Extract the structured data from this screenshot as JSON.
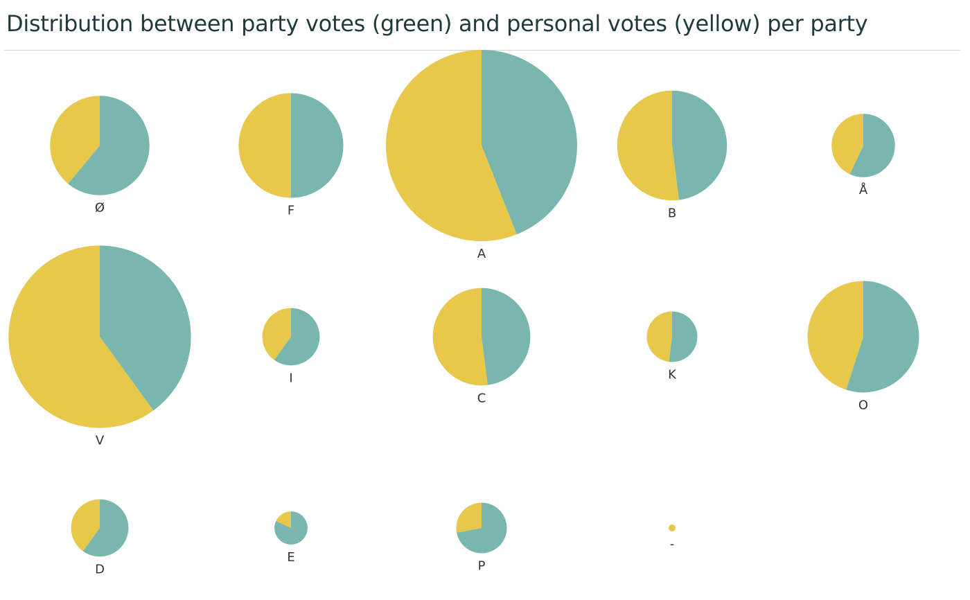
{
  "chart_data": {
    "type": "pie",
    "title": "Distribution between party votes (green) and personal votes (yellow) per party",
    "colors": {
      "party_votes": "#79b7ae",
      "personal_votes": "#e8c84a"
    },
    "series": [
      {
        "name": "party votes (green)",
        "color": "#79b7ae"
      },
      {
        "name": "personal votes (yellow)",
        "color": "#e8c84a"
      }
    ],
    "pies": [
      {
        "label": "Ø",
        "party_share": 0.61,
        "personal_share": 0.39,
        "relative_total": 0.27
      },
      {
        "label": "F",
        "party_share": 0.5,
        "personal_share": 0.5,
        "relative_total": 0.3
      },
      {
        "label": "A",
        "party_share": 0.44,
        "personal_share": 0.56,
        "relative_total": 1.0
      },
      {
        "label": "B",
        "party_share": 0.48,
        "personal_share": 0.52,
        "relative_total": 0.33
      },
      {
        "label": "Å",
        "party_share": 0.57,
        "personal_share": 0.43,
        "relative_total": 0.11
      },
      {
        "label": "V",
        "party_share": 0.4,
        "personal_share": 0.6,
        "relative_total": 0.91
      },
      {
        "label": "I",
        "party_share": 0.6,
        "personal_share": 0.4,
        "relative_total": 0.09
      },
      {
        "label": "C",
        "party_share": 0.48,
        "personal_share": 0.52,
        "relative_total": 0.26
      },
      {
        "label": "K",
        "party_share": 0.52,
        "personal_share": 0.48,
        "relative_total": 0.07
      },
      {
        "label": "O",
        "party_share": 0.55,
        "personal_share": 0.45,
        "relative_total": 0.34
      },
      {
        "label": "D",
        "party_share": 0.6,
        "personal_share": 0.4,
        "relative_total": 0.09
      },
      {
        "label": "E",
        "party_share": 0.82,
        "personal_share": 0.18,
        "relative_total": 0.03
      },
      {
        "label": "P",
        "party_share": 0.72,
        "personal_share": 0.28,
        "relative_total": 0.07
      },
      {
        "label": "-",
        "party_share": 0.0,
        "personal_share": 1.0,
        "relative_total": 0.001
      }
    ],
    "layout": "grid 5 columns x 3 rows",
    "legend": "none"
  }
}
